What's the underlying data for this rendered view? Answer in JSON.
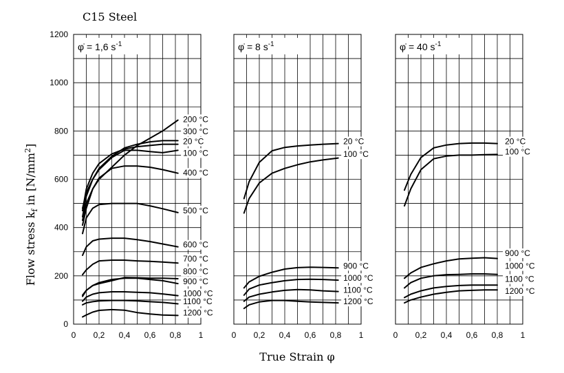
{
  "title": "C15 Steel",
  "xlabel": "True Strain φ",
  "ylabel": "Flow stress k",
  "ylabel_sub": "f",
  "ylabel_unit": " in [N/mm",
  "ylabel_sup": "2",
  "ylabel_end": "]",
  "chart_data": {
    "type": "line",
    "title": "C15 Steel",
    "xlabel": "True Strain φ",
    "ylabel": "Flow stress kf in [N/mm²]",
    "ylim": [
      0,
      1200
    ],
    "xlim": [
      0,
      1
    ],
    "grid": true,
    "y_ticks": [
      "0",
      "200",
      "400",
      "600",
      "800",
      "1000",
      "1200"
    ],
    "x_ticks": [
      "0",
      "0,2",
      "0,4",
      "0,6",
      "0,8",
      "1"
    ],
    "panels": [
      {
        "rate_label": "φ̇ = 1,6 s",
        "rate_sup": "-1",
        "series": [
          {
            "name": "200 °C",
            "x": [
              0.07,
              0.1,
              0.15,
              0.2,
              0.3,
              0.4,
              0.5,
              0.6,
              0.7,
              0.82
            ],
            "y": [
              430,
              500,
              560,
              600,
              650,
              700,
              740,
              770,
              800,
              845
            ]
          },
          {
            "name": "300 °C",
            "x": [
              0.07,
              0.1,
              0.15,
              0.2,
              0.3,
              0.4,
              0.5,
              0.6,
              0.7,
              0.82
            ],
            "y": [
              445,
              530,
              600,
              645,
              695,
              730,
              745,
              755,
              760,
              760
            ]
          },
          {
            "name": "20 °C",
            "x": [
              0.07,
              0.1,
              0.15,
              0.2,
              0.3,
              0.4,
              0.5,
              0.6,
              0.7,
              0.82
            ],
            "y": [
              470,
              560,
              625,
              665,
              705,
              725,
              735,
              740,
              745,
              745
            ]
          },
          {
            "name": "100 °C",
            "x": [
              0.07,
              0.1,
              0.15,
              0.2,
              0.3,
              0.4,
              0.5,
              0.6,
              0.7,
              0.82
            ],
            "y": [
              480,
              545,
              600,
              640,
              690,
              720,
              720,
              715,
              710,
              720
            ]
          },
          {
            "name": "400 °C",
            "x": [
              0.07,
              0.1,
              0.15,
              0.2,
              0.3,
              0.4,
              0.5,
              0.6,
              0.7,
              0.82
            ],
            "y": [
              410,
              480,
              560,
              605,
              645,
              655,
              655,
              650,
              640,
              625
            ]
          },
          {
            "name": "500 °C",
            "x": [
              0.07,
              0.1,
              0.15,
              0.2,
              0.3,
              0.4,
              0.5,
              0.6,
              0.7,
              0.82
            ],
            "y": [
              375,
              440,
              480,
              495,
              500,
              500,
              500,
              490,
              478,
              462
            ]
          },
          {
            "name": "600 °C",
            "x": [
              0.07,
              0.1,
              0.15,
              0.2,
              0.3,
              0.4,
              0.5,
              0.6,
              0.7,
              0.82
            ],
            "y": [
              285,
              320,
              345,
              352,
              356,
              356,
              350,
              342,
              332,
              320
            ]
          },
          {
            "name": "700 °C",
            "x": [
              0.07,
              0.1,
              0.15,
              0.2,
              0.3,
              0.4,
              0.5,
              0.6,
              0.7,
              0.82
            ],
            "y": [
              205,
              225,
              248,
              262,
              265,
              265,
              262,
              260,
              257,
              253
            ]
          },
          {
            "name": "800 °C",
            "x": [
              0.07,
              0.1,
              0.15,
              0.2,
              0.3,
              0.4,
              0.5,
              0.6,
              0.7,
              0.82
            ],
            "y": [
              115,
              140,
              160,
              168,
              180,
              193,
              192,
              190,
              190,
              188
            ]
          },
          {
            "name": "900 °C",
            "x": [
              0.07,
              0.1,
              0.15,
              0.2,
              0.3,
              0.4,
              0.5,
              0.6,
              0.7,
              0.82
            ],
            "y": [
              120,
              140,
              160,
              172,
              185,
              190,
              190,
              185,
              180,
              168
            ]
          },
          {
            "name": "1000 °C",
            "x": [
              0.07,
              0.1,
              0.15,
              0.2,
              0.3,
              0.4,
              0.5,
              0.6,
              0.7,
              0.82
            ],
            "y": [
              95,
              112,
              124,
              130,
              134,
              134,
              132,
              130,
              125,
              118
            ]
          },
          {
            "name": "1100 °C",
            "x": [
              0.07,
              0.1,
              0.15,
              0.2,
              0.3,
              0.4,
              0.5,
              0.6,
              0.7,
              0.82
            ],
            "y": [
              80,
              88,
              93,
              96,
              98,
              98,
              96,
              93,
              90,
              84
            ]
          },
          {
            "name": "1200 °C",
            "x": [
              0.07,
              0.1,
              0.15,
              0.2,
              0.3,
              0.4,
              0.5,
              0.6,
              0.7,
              0.82
            ],
            "y": [
              30,
              38,
              50,
              57,
              60,
              58,
              48,
              42,
              38,
              36
            ]
          }
        ]
      },
      {
        "rate_label": "φ̇ = 8 s",
        "rate_sup": "-1",
        "series": [
          {
            "name": "20 °C",
            "x": [
              0.08,
              0.12,
              0.2,
              0.3,
              0.4,
              0.5,
              0.6,
              0.7,
              0.82
            ],
            "y": [
              520,
              590,
              670,
              718,
              732,
              738,
              742,
              745,
              748
            ]
          },
          {
            "name": "100 °C",
            "x": [
              0.08,
              0.12,
              0.2,
              0.3,
              0.4,
              0.5,
              0.6,
              0.7,
              0.82
            ],
            "y": [
              460,
              520,
              585,
              625,
              645,
              660,
              672,
              680,
              688
            ]
          },
          {
            "name": "900 °C",
            "x": [
              0.08,
              0.12,
              0.2,
              0.3,
              0.4,
              0.5,
              0.6,
              0.7,
              0.82
            ],
            "y": [
              150,
              175,
              198,
              215,
              228,
              234,
              236,
              235,
              233
            ]
          },
          {
            "name": "1000 °C",
            "x": [
              0.08,
              0.12,
              0.2,
              0.3,
              0.4,
              0.5,
              0.6,
              0.7,
              0.82
            ],
            "y": [
              120,
              145,
              162,
              172,
              180,
              185,
              186,
              185,
              182
            ]
          },
          {
            "name": "1100 °C",
            "x": [
              0.08,
              0.12,
              0.2,
              0.3,
              0.4,
              0.5,
              0.6,
              0.7,
              0.82
            ],
            "y": [
              95,
              112,
              124,
              133,
              140,
              143,
              142,
              138,
              135
            ]
          },
          {
            "name": "1200 °C",
            "x": [
              0.08,
              0.12,
              0.2,
              0.3,
              0.4,
              0.5,
              0.6,
              0.7,
              0.82
            ],
            "y": [
              65,
              80,
              92,
              98,
              98,
              95,
              92,
              90,
              88
            ]
          }
        ]
      },
      {
        "rate_label": "φ̇ = 40 s",
        "rate_sup": "-1",
        "series": [
          {
            "name": "20 °C",
            "x": [
              0.07,
              0.12,
              0.2,
              0.3,
              0.4,
              0.5,
              0.6,
              0.7,
              0.8
            ],
            "y": [
              555,
              620,
              690,
              730,
              742,
              748,
              750,
              750,
              748
            ]
          },
          {
            "name": "100 °C",
            "x": [
              0.07,
              0.12,
              0.2,
              0.3,
              0.4,
              0.5,
              0.6,
              0.7,
              0.8
            ],
            "y": [
              490,
              560,
              640,
              685,
              696,
              700,
              700,
              702,
              703
            ]
          },
          {
            "name": "900 °C",
            "x": [
              0.07,
              0.12,
              0.2,
              0.3,
              0.4,
              0.5,
              0.6,
              0.7,
              0.8
            ],
            "y": [
              190,
              212,
              235,
              250,
              262,
              270,
              273,
              275,
              272
            ]
          },
          {
            "name": "1000 °C",
            "x": [
              0.07,
              0.12,
              0.2,
              0.3,
              0.4,
              0.5,
              0.6,
              0.7,
              0.8
            ],
            "y": [
              150,
              172,
              190,
              200,
              205,
              206,
              208,
              208,
              206
            ]
          },
          {
            "name": "1100 °C",
            "x": [
              0.07,
              0.12,
              0.2,
              0.3,
              0.4,
              0.5,
              0.6,
              0.7,
              0.8
            ],
            "y": [
              110,
              124,
              138,
              150,
              156,
              160,
              162,
              162,
              162
            ]
          },
          {
            "name": "1200 °C",
            "x": [
              0.07,
              0.12,
              0.2,
              0.3,
              0.4,
              0.5,
              0.6,
              0.7,
              0.8
            ],
            "y": [
              88,
              100,
              112,
              124,
              132,
              138,
              140,
              142,
              142
            ]
          }
        ]
      }
    ]
  }
}
